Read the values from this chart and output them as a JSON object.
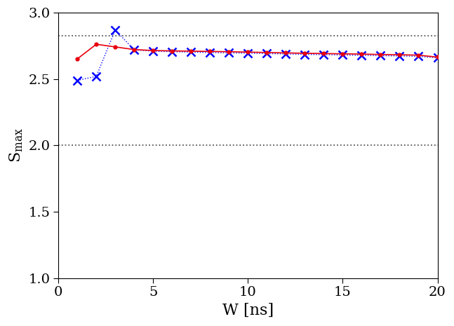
{
  "red_x": [
    1,
    2,
    3,
    4,
    5,
    6,
    7,
    8,
    9,
    10,
    11,
    12,
    13,
    14,
    15,
    16,
    17,
    18,
    19,
    20
  ],
  "red_y": [
    2.652,
    2.762,
    2.742,
    2.722,
    2.715,
    2.712,
    2.71,
    2.708,
    2.706,
    2.703,
    2.7,
    2.697,
    2.694,
    2.692,
    2.69,
    2.688,
    2.685,
    2.683,
    2.68,
    2.665
  ],
  "blue_x": [
    1,
    2,
    3,
    4,
    5,
    6,
    7,
    8,
    9,
    10,
    11,
    12,
    13,
    14,
    15,
    16,
    17,
    18,
    19,
    20
  ],
  "blue_y": [
    2.49,
    2.52,
    2.87,
    2.72,
    2.71,
    2.706,
    2.703,
    2.7,
    2.697,
    2.695,
    2.692,
    2.689,
    2.686,
    2.684,
    2.681,
    2.679,
    2.676,
    2.674,
    2.671,
    2.66
  ],
  "hline1": 2.8284271247461903,
  "hline2": 2.0,
  "xlabel": "W [ns]",
  "ylabel": "S$_\\mathrm{max}$",
  "xlim": [
    0,
    20
  ],
  "ylim": [
    1,
    3
  ],
  "yticks": [
    1,
    1.5,
    2,
    2.5,
    3
  ],
  "xticks": [
    0,
    5,
    10,
    15,
    20
  ],
  "red_color": "#e8000d",
  "blue_color": "#0000ff",
  "hline_color": "#555555",
  "tick_fontsize": 14,
  "label_fontsize": 16
}
